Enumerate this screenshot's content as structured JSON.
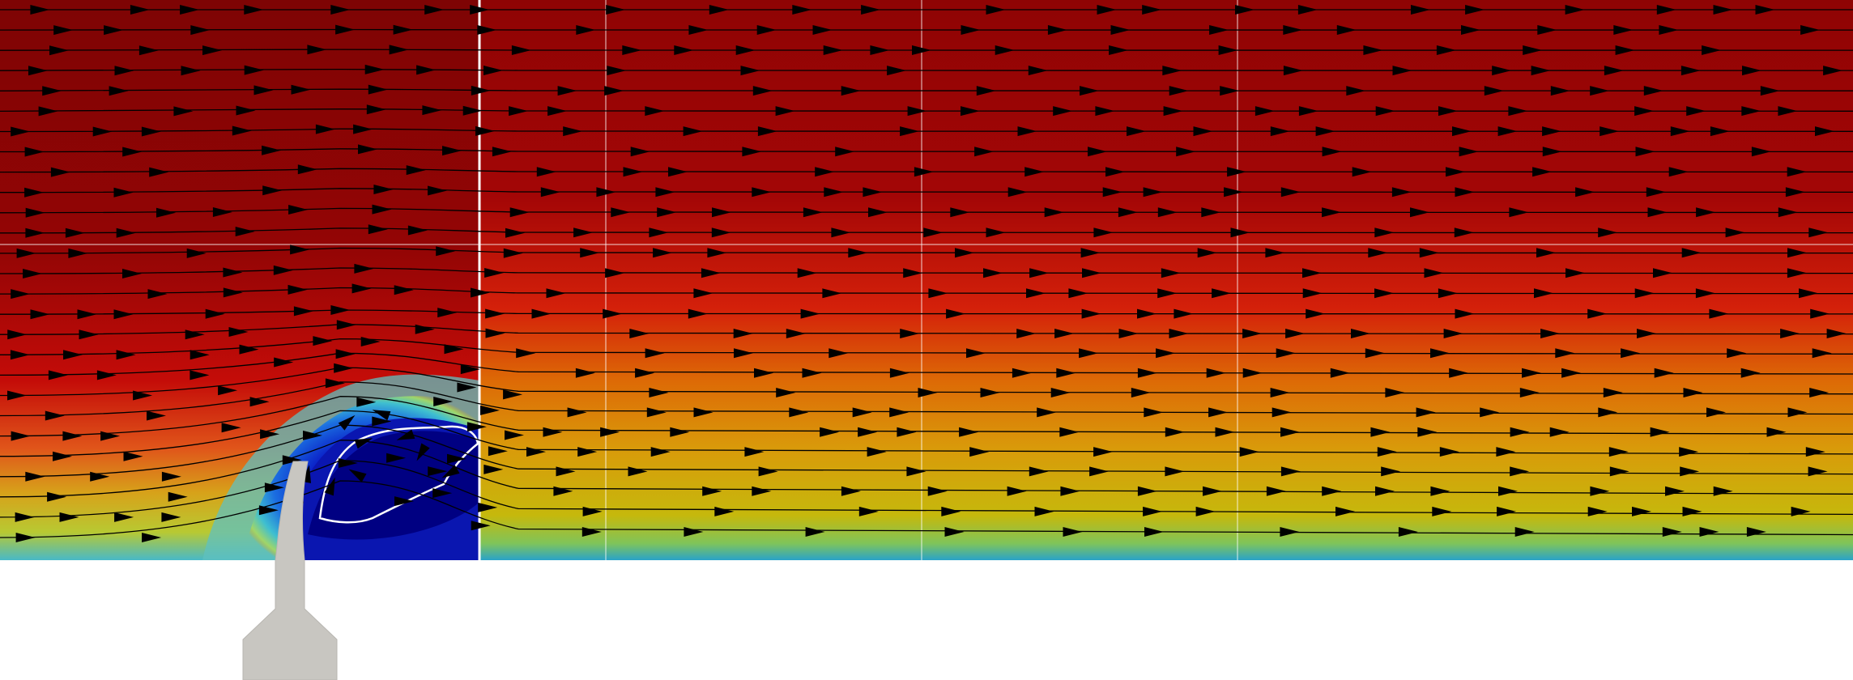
{
  "scene": {
    "kind": "cfd-velocity-field-with-streamlines",
    "colors": {
      "background": "#ffffff",
      "nozzle": "#c8c6c1",
      "streamline": "#000000",
      "arrow": "#000000",
      "grid_line": "#ffffff",
      "recirculation_contour": "#ffffff",
      "colormap": [
        "#00007f",
        "#0a2fd0",
        "#1f8fdc",
        "#3fc6c1",
        "#b8d23c",
        "#d6a00a",
        "#db6a06",
        "#d01a07",
        "#a50606",
        "#7e0404"
      ]
    },
    "streamline_count": 27,
    "nozzle_icon": "jet-nozzle-icon"
  }
}
